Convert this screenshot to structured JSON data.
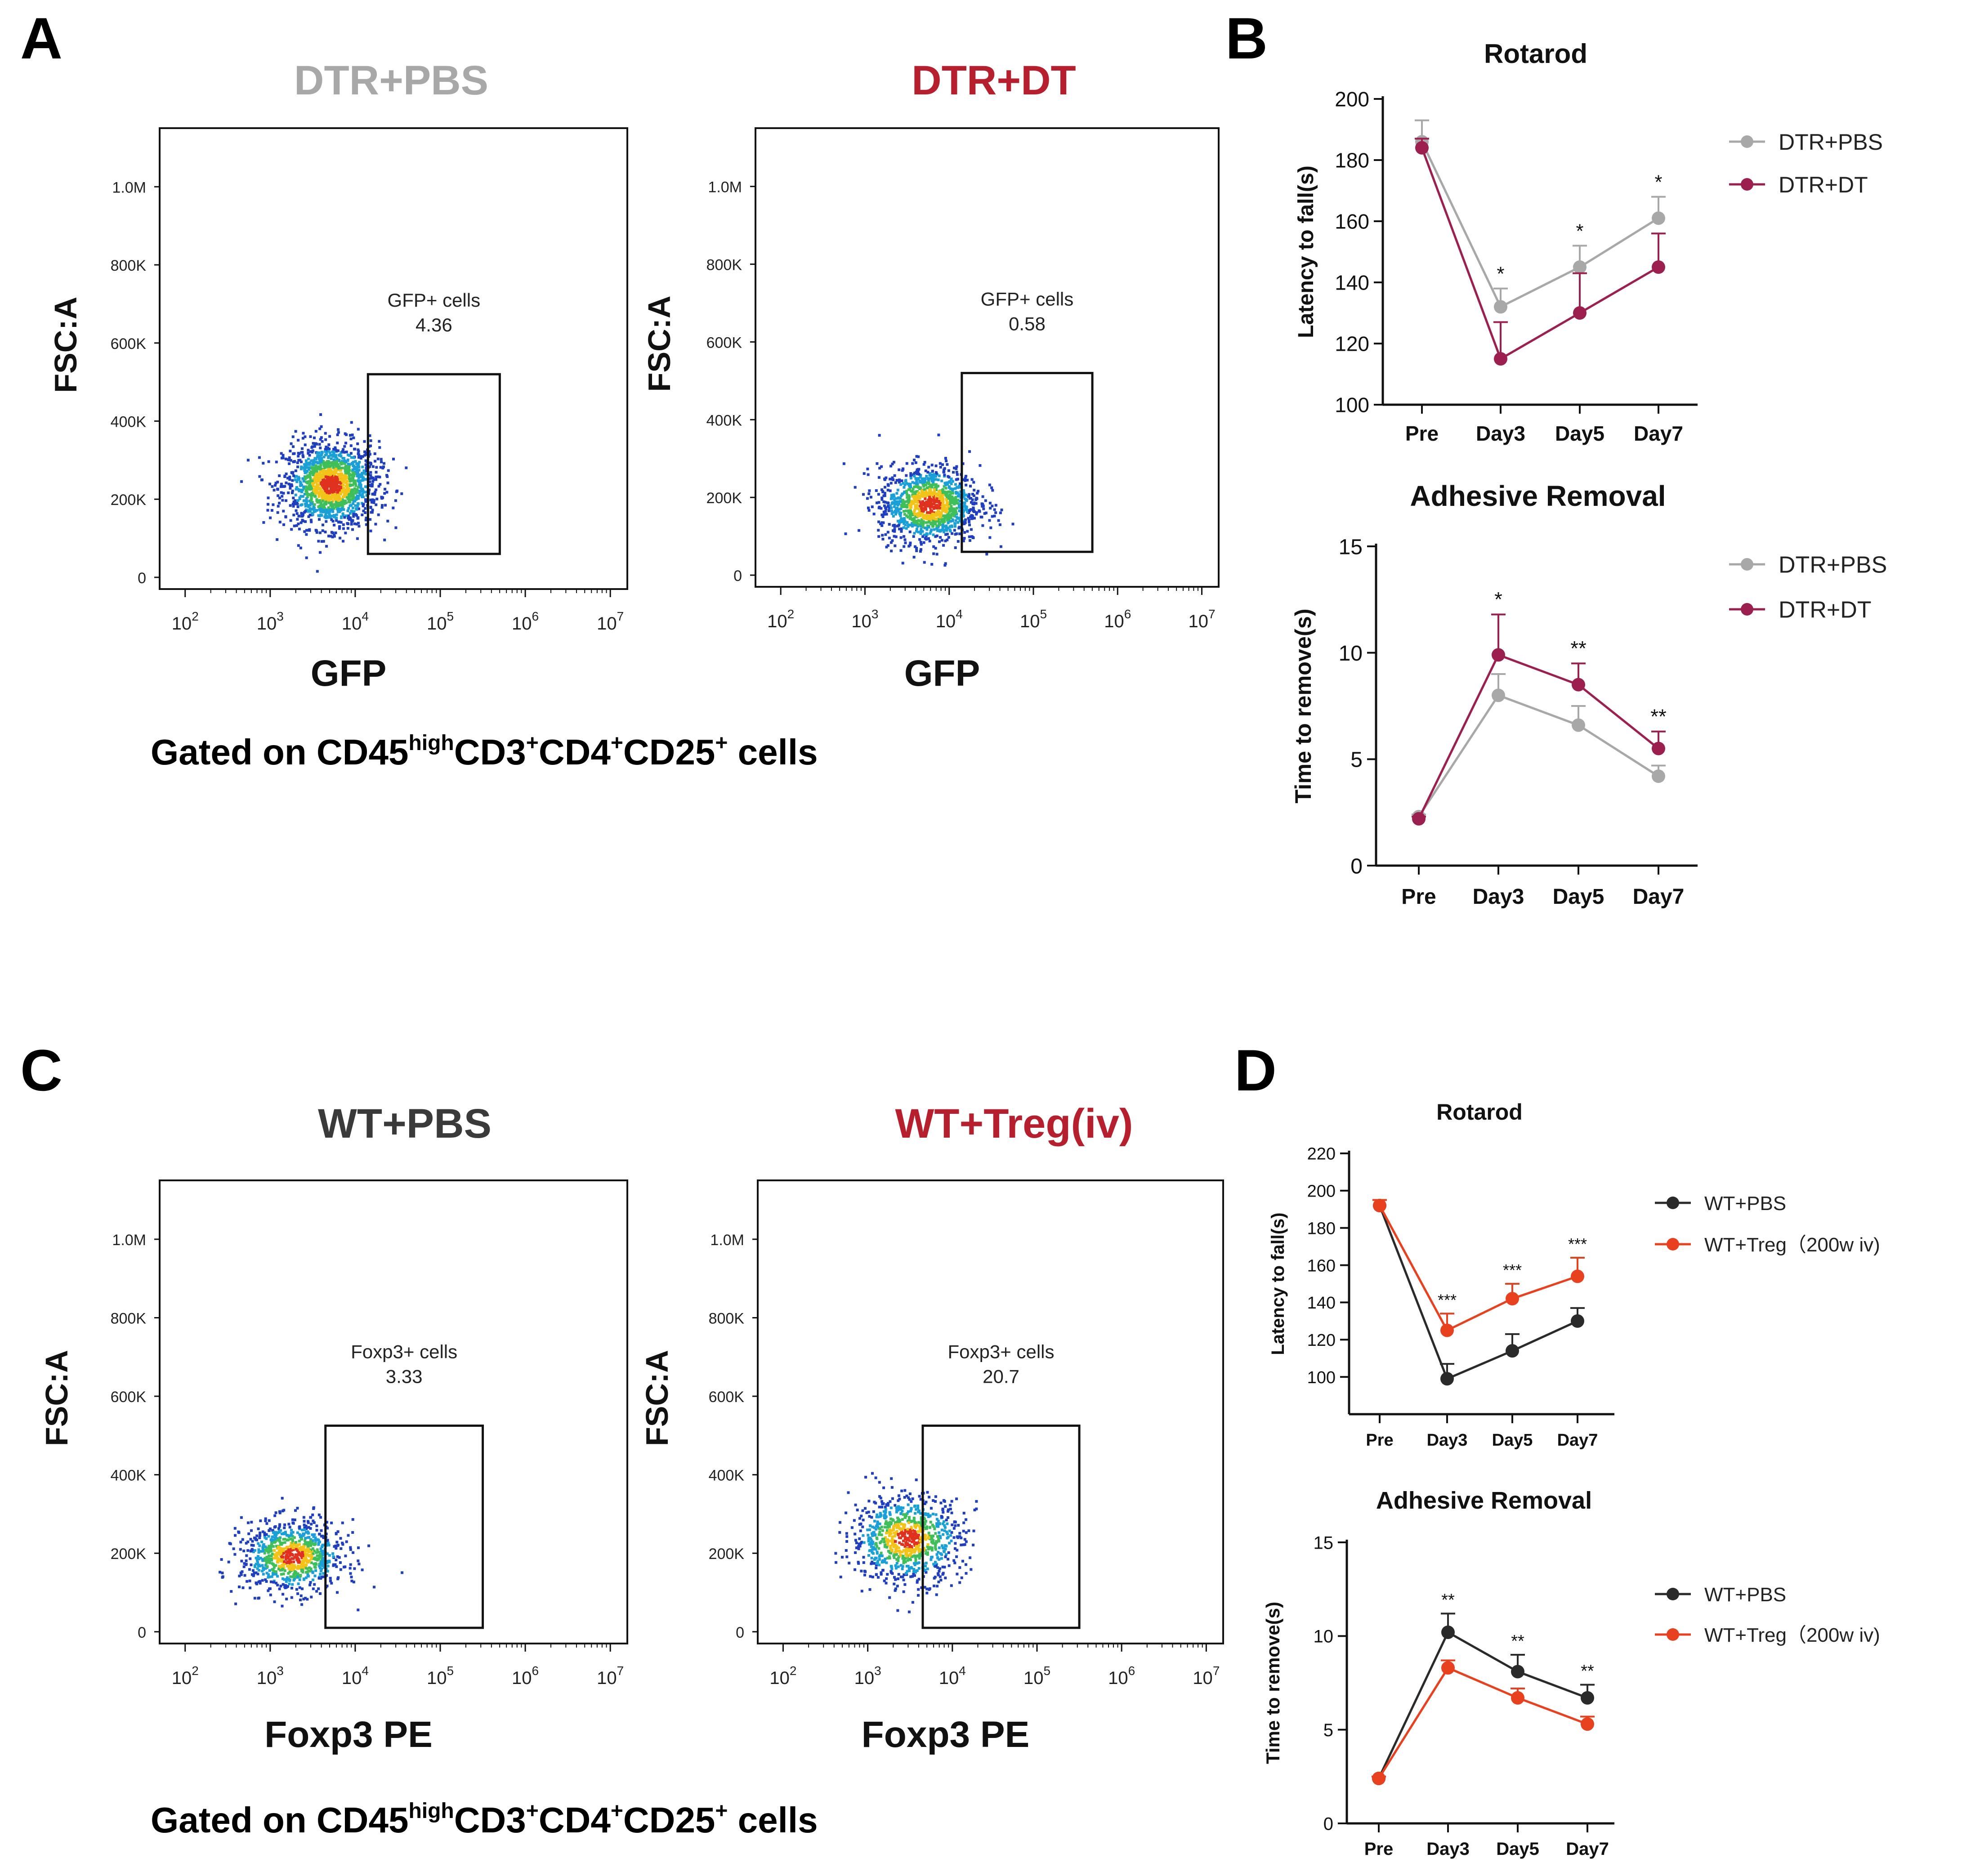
{
  "panels": [
    {
      "letter": "A",
      "footer_main": "Gated on CD45",
      "footer_sup1": "high",
      "footer_mid1": "CD3",
      "footer_sup2": "+",
      "footer_mid2": "CD4",
      "footer_sup3": "+",
      "footer_mid3": "CD25",
      "footer_sup4": "+",
      "footer_tail": " cells"
    },
    {
      "letter": "B"
    },
    {
      "letter": "C",
      "footer_main": "Gated on CD45",
      "footer_sup1": "high",
      "footer_mid1": "CD3",
      "footer_sup2": "+",
      "footer_mid2": "CD4",
      "footer_sup3": "+",
      "footer_mid3": "CD25",
      "footer_sup4": "+",
      "footer_tail": " cells"
    },
    {
      "letter": "D"
    }
  ],
  "colors": {
    "grey": "#a8a8a8",
    "maroon": "#9b2050",
    "black": "#2a2a2a",
    "orange": "#e8411f",
    "title_grey": "#a8a8a8",
    "title_red": "#b51f2e",
    "title_dark": "#3a3a3a"
  },
  "flow_plots": [
    {
      "title": "DTR+PBS",
      "title_color": "#a8a8a8",
      "xlabel": "GFP",
      "ylabel": "FSC:A",
      "gate_label": "GFP+ cells",
      "gate_value": "4.36",
      "yticks": [
        "0",
        "200K",
        "400K",
        "600K",
        "800K",
        "1.0M"
      ],
      "xticks": [
        {
          "base": "10",
          "exp": "2"
        },
        {
          "base": "10",
          "exp": "3"
        },
        {
          "base": "10",
          "exp": "4"
        },
        {
          "base": "10",
          "exp": "5"
        },
        {
          "base": "10",
          "exp": "6"
        },
        {
          "base": "10",
          "exp": "7"
        }
      ],
      "cloud": {
        "cx": 3.7,
        "cy": 240000,
        "sx": 0.28,
        "sy": 55000,
        "n": 1500
      },
      "gate": {
        "x0": 4.15,
        "x1": 5.7,
        "y0": 60000,
        "y1": 520000
      }
    },
    {
      "title": "DTR+DT",
      "title_color": "#b51f2e",
      "xlabel": "GFP",
      "ylabel": "FSC:A",
      "gate_label": "GFP+ cells",
      "gate_value": "0.58",
      "yticks": [
        "0",
        "200K",
        "400K",
        "600K",
        "800K",
        "1.0M"
      ],
      "xticks": [
        {
          "base": "10",
          "exp": "2"
        },
        {
          "base": "10",
          "exp": "3"
        },
        {
          "base": "10",
          "exp": "4"
        },
        {
          "base": "10",
          "exp": "5"
        },
        {
          "base": "10",
          "exp": "6"
        },
        {
          "base": "10",
          "exp": "7"
        }
      ],
      "cloud": {
        "cx": 3.75,
        "cy": 185000,
        "sx": 0.3,
        "sy": 50000,
        "n": 1200
      },
      "gate": {
        "x0": 4.15,
        "x1": 5.7,
        "y0": 60000,
        "y1": 520000
      }
    },
    {
      "title": "WT+PBS",
      "title_color": "#3a3a3a",
      "xlabel": "Foxp3 PE",
      "ylabel": "FSC:A",
      "gate_label": "Foxp3+ cells",
      "gate_value": "3.33",
      "yticks": [
        "0",
        "200K",
        "400K",
        "600K",
        "800K",
        "1.0M"
      ],
      "xticks": [
        {
          "base": "10",
          "exp": "2"
        },
        {
          "base": "10",
          "exp": "3"
        },
        {
          "base": "10",
          "exp": "4"
        },
        {
          "base": "10",
          "exp": "5"
        },
        {
          "base": "10",
          "exp": "6"
        },
        {
          "base": "10",
          "exp": "7"
        }
      ],
      "cloud": {
        "cx": 3.25,
        "cy": 195000,
        "sx": 0.3,
        "sy": 45000,
        "n": 900
      },
      "gate": {
        "x0": 3.65,
        "x1": 5.5,
        "y0": 10000,
        "y1": 525000
      }
    },
    {
      "title": "WT+Treg(iv)",
      "title_color": "#b51f2e",
      "xlabel": "Foxp3 PE",
      "ylabel": "FSC:A",
      "gate_label": "Foxp3+ cells",
      "gate_value": "20.7",
      "yticks": [
        "0",
        "200K",
        "400K",
        "600K",
        "800K",
        "1.0M"
      ],
      "xticks": [
        {
          "base": "10",
          "exp": "2"
        },
        {
          "base": "10",
          "exp": "3"
        },
        {
          "base": "10",
          "exp": "4"
        },
        {
          "base": "10",
          "exp": "5"
        },
        {
          "base": "10",
          "exp": "6"
        },
        {
          "base": "10",
          "exp": "7"
        }
      ],
      "cloud": {
        "cx": 3.45,
        "cy": 240000,
        "sx": 0.33,
        "sy": 55000,
        "n": 900
      },
      "gate": {
        "x0": 3.65,
        "x1": 5.5,
        "y0": 10000,
        "y1": 525000
      }
    }
  ],
  "chart_data": [
    {
      "type": "line",
      "title": "Rotarod",
      "xlabel": "",
      "ylabel": "Latency to fall(s)",
      "categories": [
        "Pre",
        "Day3",
        "Day5",
        "Day7"
      ],
      "ylim": [
        100,
        200
      ],
      "yticks": [
        "100",
        "120",
        "140",
        "160",
        "180",
        "200"
      ],
      "series": [
        {
          "name": "DTR+PBS",
          "color": "#a8a8a8",
          "values": [
            186,
            132,
            145,
            161
          ],
          "errors": [
            7,
            6,
            7,
            7
          ]
        },
        {
          "name": "DTR+DT",
          "color": "#9b2050",
          "values": [
            184,
            115,
            130,
            145
          ],
          "errors": [
            3,
            12,
            13,
            11
          ]
        }
      ],
      "sig": [
        "",
        "*",
        "*",
        "*"
      ]
    },
    {
      "type": "line",
      "title": "Adhesive Removal",
      "xlabel": "",
      "ylabel": "Time to remove(s)",
      "categories": [
        "Pre",
        "Day3",
        "Day5",
        "Day7"
      ],
      "ylim": [
        0,
        15
      ],
      "yticks": [
        "0",
        "5",
        "10",
        "15"
      ],
      "series": [
        {
          "name": "DTR+PBS",
          "color": "#a8a8a8",
          "values": [
            2.3,
            8.0,
            6.6,
            4.2
          ],
          "errors": [
            0.1,
            1.0,
            0.9,
            0.5
          ]
        },
        {
          "name": "DTR+DT",
          "color": "#9b2050",
          "values": [
            2.2,
            9.9,
            8.5,
            5.5
          ],
          "errors": [
            0.1,
            1.9,
            1.0,
            0.8
          ]
        }
      ],
      "sig": [
        "",
        "*",
        "**",
        "**"
      ]
    },
    {
      "type": "line",
      "title": "Rotarod",
      "xlabel": "",
      "ylabel": "Latency to fall(s)",
      "categories": [
        "Pre",
        "Day3",
        "Day5",
        "Day7"
      ],
      "ylim": [
        80,
        220
      ],
      "yticks": [
        "100",
        "120",
        "140",
        "160",
        "180",
        "200",
        "220"
      ],
      "series": [
        {
          "name": "WT+PBS",
          "color": "#2a2a2a",
          "values": [
            192,
            99,
            114,
            130
          ],
          "errors": [
            3,
            8,
            9,
            7
          ]
        },
        {
          "name": "WT+Treg（200w iv)",
          "color": "#e8411f",
          "values": [
            192,
            125,
            142,
            154
          ],
          "errors": [
            3,
            9,
            8,
            10
          ]
        }
      ],
      "sig": [
        "",
        "***",
        "***",
        "***"
      ]
    },
    {
      "type": "line",
      "title": "Adhesive Removal",
      "xlabel": "",
      "ylabel": "Time to remove(s)",
      "categories": [
        "Pre",
        "Day3",
        "Day5",
        "Day7"
      ],
      "ylim": [
        0,
        15
      ],
      "yticks": [
        "0",
        "5",
        "10",
        "15"
      ],
      "series": [
        {
          "name": "WT+PBS",
          "color": "#2a2a2a",
          "values": [
            2.4,
            10.2,
            8.1,
            6.7
          ],
          "errors": [
            0.1,
            1.0,
            0.9,
            0.7
          ]
        },
        {
          "name": "WT+Treg（200w iv)",
          "color": "#e8411f",
          "values": [
            2.4,
            8.3,
            6.7,
            5.3
          ],
          "errors": [
            0.1,
            0.4,
            0.5,
            0.4
          ]
        }
      ],
      "sig": [
        "",
        "**",
        "**",
        "**"
      ]
    }
  ]
}
